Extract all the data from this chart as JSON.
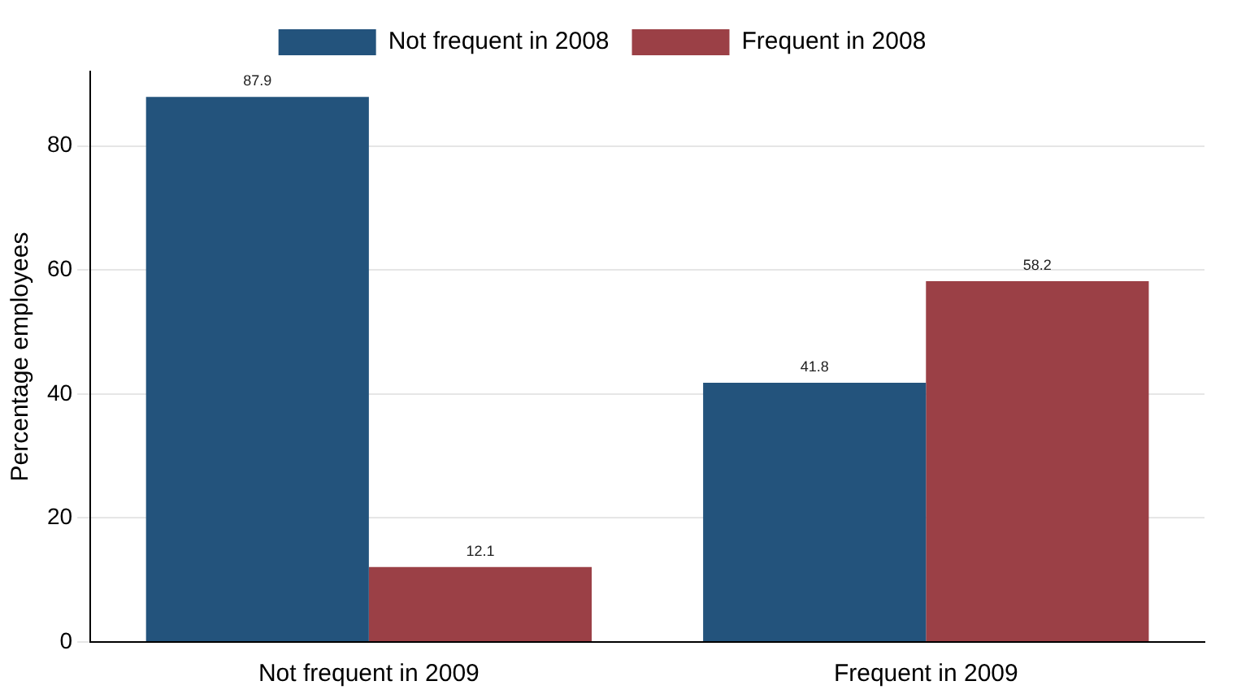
{
  "chart_data": {
    "type": "bar",
    "categories": [
      "Not frequent in 2009",
      "Frequent in 2009"
    ],
    "series": [
      {
        "name": "Not frequent in 2008",
        "color": "#23537c",
        "values": [
          87.9,
          41.8
        ]
      },
      {
        "name": "Frequent in 2008",
        "color": "#9b4046",
        "values": [
          12.1,
          58.2
        ]
      }
    ],
    "ylabel": "Percentage employees",
    "ylim": [
      0,
      92
    ],
    "yticks": [
      0,
      20,
      40,
      60,
      80
    ],
    "grid": "y",
    "legend": "top",
    "data_labels": true
  }
}
